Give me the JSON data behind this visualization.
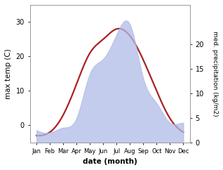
{
  "months": [
    "Jan",
    "Feb",
    "Mar",
    "Apr",
    "May",
    "Jun",
    "Jul",
    "Aug",
    "Sep",
    "Oct",
    "Nov",
    "Dec"
  ],
  "temp_max": [
    -3,
    -2,
    3,
    12,
    21,
    25,
    28,
    26,
    19,
    10,
    2,
    -2
  ],
  "precip": [
    2.5,
    2,
    3,
    5,
    14,
    17,
    22,
    24,
    13,
    8,
    4,
    4
  ],
  "temp_ylim": [
    -5,
    35
  ],
  "precip_ylim": [
    0,
    28
  ],
  "temp_yticks": [
    0,
    10,
    20,
    30
  ],
  "precip_yticks": [
    0,
    5,
    10,
    15,
    20
  ],
  "fill_color": "#b0bce8",
  "fill_alpha": 0.75,
  "line_color": "#aa2222",
  "line_width": 1.6,
  "xlabel": "date (month)",
  "ylabel_left": "max temp (C)",
  "ylabel_right": "med. precipitation (kg/m2)",
  "bg_color": "#ffffff"
}
